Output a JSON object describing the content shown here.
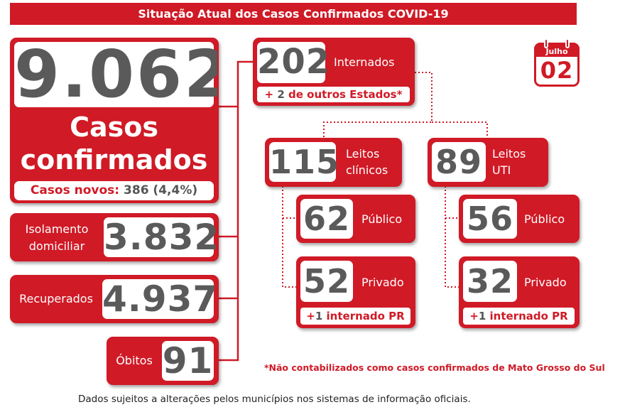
{
  "header": {
    "title": "Situação Atual dos Casos Confirmados COVID-19"
  },
  "calendar": {
    "month": "Julho",
    "day": "02"
  },
  "main": {
    "total": "9.062",
    "label_line1": "Casos",
    "label_line2": "confirmados",
    "new_cases_label": "Casos novos:",
    "new_cases_value": "386 (4,4%)"
  },
  "isolamento": {
    "label_line1": "Isolamento",
    "label_line2": "domiciliar",
    "value": "3.832"
  },
  "recuperados": {
    "label": "Recuperados",
    "value": "4.937"
  },
  "obitos": {
    "label": "Óbitos",
    "value": "91"
  },
  "internados": {
    "value": "202",
    "label": "Internados",
    "note_plus": "+",
    "note_num": "2",
    "note_text": "de outros Estados*"
  },
  "clinicos": {
    "value": "115",
    "label_line1": "Leitos",
    "label_line2": "clínicos",
    "publico": {
      "value": "62",
      "label": "Público"
    },
    "privado": {
      "value": "52",
      "label": "Privado",
      "note_plus": "+",
      "note_num": "1",
      "note_text": "internado PR"
    }
  },
  "uti": {
    "value": "89",
    "label_line1": "Leitos",
    "label_line2": "UTI",
    "publico": {
      "value": "56",
      "label": "Público"
    },
    "privado": {
      "value": "32",
      "label": "Privado",
      "note_plus": "+",
      "note_num": "1",
      "note_text": "internado PR"
    }
  },
  "footnote": "*Não contabilizados como casos confirmados de Mato Grosso do Sul",
  "disclaimer": "Dados sujeitos a alterações pelos municípios nos sistemas de informação oficiais.",
  "colors": {
    "accent": "#d01a26",
    "number": "#5a5a5a"
  }
}
